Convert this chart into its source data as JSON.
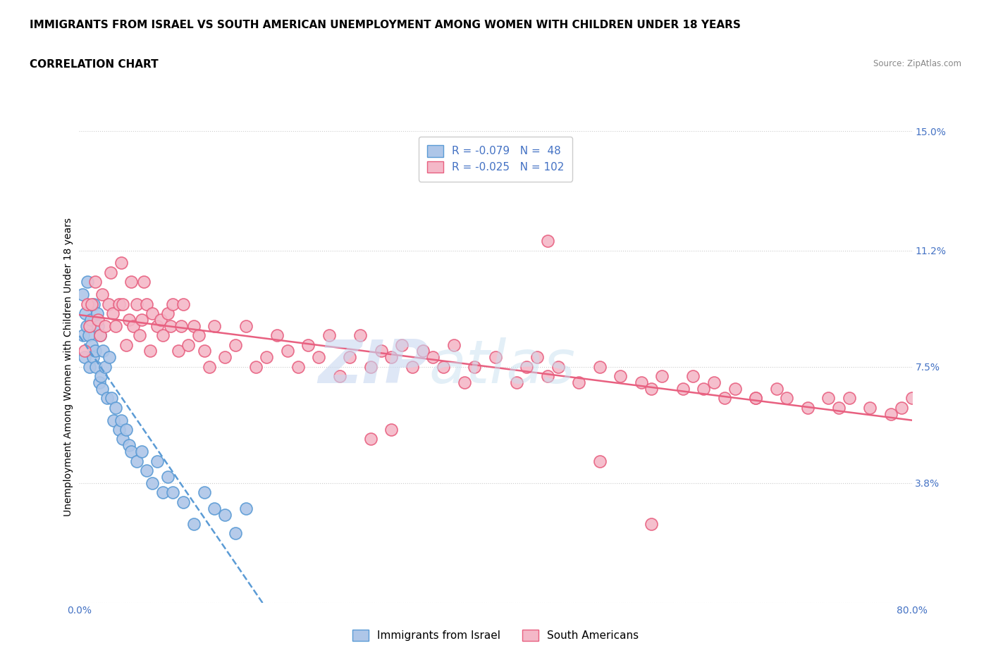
{
  "title": "IMMIGRANTS FROM ISRAEL VS SOUTH AMERICAN UNEMPLOYMENT AMONG WOMEN WITH CHILDREN UNDER 18 YEARS",
  "subtitle": "CORRELATION CHART",
  "source": "Source: ZipAtlas.com",
  "ylabel": "Unemployment Among Women with Children Under 18 years",
  "xlim": [
    0,
    80
  ],
  "ylim": [
    0,
    15
  ],
  "yticks": [
    0,
    3.8,
    7.5,
    11.2,
    15.0
  ],
  "xticks": [
    0,
    16,
    32,
    48,
    64,
    80
  ],
  "ytick_labels": [
    "",
    "3.8%",
    "7.5%",
    "11.2%",
    "15.0%"
  ],
  "watermark_zip": "ZIP",
  "watermark_atlas": "atlas",
  "background_color": "#ffffff",
  "grid_color": "#cccccc",
  "title_fontsize": 11,
  "subtitle_fontsize": 11,
  "legend_fontsize": 11,
  "axis_label_fontsize": 10,
  "tick_fontsize": 10,
  "series": [
    {
      "name": "Immigrants from Israel",
      "color": "#aec6e8",
      "edge_color": "#5b9bd5",
      "R": -0.079,
      "N": 48,
      "trend_color": "#5b9bd5",
      "trend_style": "--",
      "x": [
        0.3,
        0.4,
        0.5,
        0.6,
        0.7,
        0.8,
        0.9,
        1.0,
        1.1,
        1.2,
        1.3,
        1.4,
        1.5,
        1.6,
        1.7,
        1.8,
        1.9,
        2.0,
        2.1,
        2.2,
        2.3,
        2.5,
        2.7,
        2.9,
        3.1,
        3.3,
        3.5,
        3.8,
        4.0,
        4.2,
        4.5,
        4.8,
        5.0,
        5.5,
        6.0,
        6.5,
        7.0,
        7.5,
        8.0,
        8.5,
        9.0,
        10.0,
        11.0,
        12.0,
        13.0,
        14.0,
        15.0,
        16.0
      ],
      "y": [
        9.8,
        8.5,
        7.8,
        9.2,
        8.8,
        10.2,
        8.5,
        7.5,
        9.0,
        8.2,
        7.8,
        9.5,
        8.0,
        7.5,
        9.2,
        8.8,
        7.0,
        8.5,
        7.2,
        6.8,
        8.0,
        7.5,
        6.5,
        7.8,
        6.5,
        5.8,
        6.2,
        5.5,
        5.8,
        5.2,
        5.5,
        5.0,
        4.8,
        4.5,
        4.8,
        4.2,
        3.8,
        4.5,
        3.5,
        4.0,
        3.5,
        3.2,
        2.5,
        3.5,
        3.0,
        2.8,
        2.2,
        3.0
      ]
    },
    {
      "name": "South Americans",
      "color": "#f4b8c8",
      "edge_color": "#e86080",
      "R": -0.025,
      "N": 102,
      "trend_color": "#e86080",
      "trend_style": "-",
      "x": [
        0.5,
        0.8,
        1.0,
        1.2,
        1.5,
        1.8,
        2.0,
        2.2,
        2.5,
        2.8,
        3.0,
        3.2,
        3.5,
        3.8,
        4.0,
        4.2,
        4.5,
        4.8,
        5.0,
        5.2,
        5.5,
        5.8,
        6.0,
        6.2,
        6.5,
        6.8,
        7.0,
        7.5,
        7.8,
        8.0,
        8.5,
        8.8,
        9.0,
        9.5,
        9.8,
        10.0,
        10.5,
        11.0,
        11.5,
        12.0,
        12.5,
        13.0,
        14.0,
        15.0,
        16.0,
        17.0,
        18.0,
        19.0,
        20.0,
        21.0,
        22.0,
        23.0,
        24.0,
        25.0,
        26.0,
        27.0,
        28.0,
        29.0,
        30.0,
        31.0,
        32.0,
        33.0,
        34.0,
        35.0,
        36.0,
        37.0,
        38.0,
        40.0,
        42.0,
        43.0,
        44.0,
        45.0,
        46.0,
        48.0,
        50.0,
        52.0,
        54.0,
        55.0,
        56.0,
        58.0,
        59.0,
        60.0,
        61.0,
        62.0,
        63.0,
        65.0,
        67.0,
        68.0,
        70.0,
        72.0,
        73.0,
        74.0,
        76.0,
        78.0,
        79.0,
        80.0,
        45.0,
        50.0,
        55.0,
        65.0,
        28.0,
        30.0
      ],
      "y": [
        8.0,
        9.5,
        8.8,
        9.5,
        10.2,
        9.0,
        8.5,
        9.8,
        8.8,
        9.5,
        10.5,
        9.2,
        8.8,
        9.5,
        10.8,
        9.5,
        8.2,
        9.0,
        10.2,
        8.8,
        9.5,
        8.5,
        9.0,
        10.2,
        9.5,
        8.0,
        9.2,
        8.8,
        9.0,
        8.5,
        9.2,
        8.8,
        9.5,
        8.0,
        8.8,
        9.5,
        8.2,
        8.8,
        8.5,
        8.0,
        7.5,
        8.8,
        7.8,
        8.2,
        8.8,
        7.5,
        7.8,
        8.5,
        8.0,
        7.5,
        8.2,
        7.8,
        8.5,
        7.2,
        7.8,
        8.5,
        7.5,
        8.0,
        7.8,
        8.2,
        7.5,
        8.0,
        7.8,
        7.5,
        8.2,
        7.0,
        7.5,
        7.8,
        7.0,
        7.5,
        7.8,
        7.2,
        7.5,
        7.0,
        7.5,
        7.2,
        7.0,
        6.8,
        7.2,
        6.8,
        7.2,
        6.8,
        7.0,
        6.5,
        6.8,
        6.5,
        6.8,
        6.5,
        6.2,
        6.5,
        6.2,
        6.5,
        6.2,
        6.0,
        6.2,
        6.5,
        11.5,
        4.5,
        2.5,
        6.5,
        5.2,
        5.5
      ]
    }
  ]
}
